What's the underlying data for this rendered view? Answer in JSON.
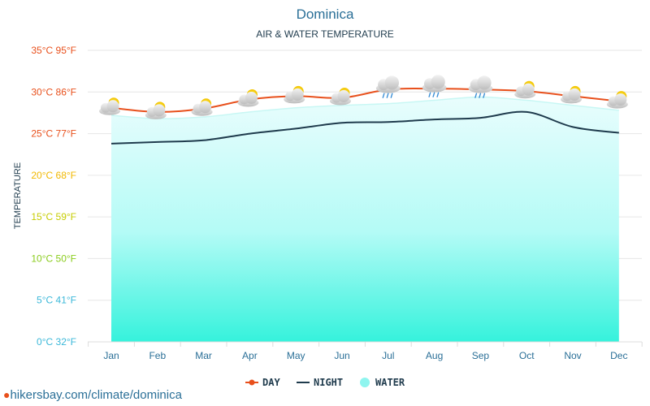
{
  "chart_data": {
    "type": "line",
    "title": "Dominica",
    "subtitle": "AIR & WATER TEMPERATURE",
    "ylabel": "TEMPERATURE",
    "xlabel": "",
    "categories": [
      "Jan",
      "Feb",
      "Mar",
      "Apr",
      "May",
      "Jun",
      "Jul",
      "Aug",
      "Sep",
      "Oct",
      "Nov",
      "Dec"
    ],
    "ylim": [
      0,
      35
    ],
    "yticks": [
      {
        "value": 35,
        "label": "35°C 95°F",
        "color": "#e8501c"
      },
      {
        "value": 30,
        "label": "30°C 86°F",
        "color": "#e8501c"
      },
      {
        "value": 25,
        "label": "25°C 77°F",
        "color": "#e8501c"
      },
      {
        "value": 20,
        "label": "20°C 68°F",
        "color": "#f1b800"
      },
      {
        "value": 15,
        "label": "15°C 59°F",
        "color": "#c6cc00"
      },
      {
        "value": 10,
        "label": "10°C 50°F",
        "color": "#8acc1c"
      },
      {
        "value": 5,
        "label": "5°C 41°F",
        "color": "#3bb8d9"
      },
      {
        "value": 0,
        "label": "0°C 32°F",
        "color": "#3bb8d9"
      }
    ],
    "grid": true,
    "legend_position": "bottom",
    "series": [
      {
        "name": "DAY",
        "kind": "line",
        "color": "#e8501c",
        "values": [
          28.1,
          27.6,
          28.0,
          29.1,
          29.5,
          29.3,
          30.3,
          30.4,
          30.3,
          30.1,
          29.5,
          28.9
        ]
      },
      {
        "name": "NIGHT",
        "kind": "line",
        "color": "#1f3b4d",
        "values": [
          23.8,
          24.0,
          24.2,
          25.0,
          25.6,
          26.3,
          26.4,
          26.7,
          26.9,
          27.6,
          25.8,
          25.1
        ]
      },
      {
        "name": "WATER",
        "kind": "area",
        "color": "#5ff3e8",
        "values": [
          27.2,
          26.8,
          27.0,
          27.6,
          28.1,
          28.4,
          28.6,
          29.0,
          29.4,
          29.0,
          28.4,
          27.8
        ]
      }
    ],
    "weather_icons": [
      "partly-cloudy",
      "partly-cloudy",
      "partly-cloudy",
      "partly-cloudy",
      "partly-cloudy",
      "partly-cloudy",
      "cloud-rain",
      "cloud-rain",
      "cloud-rain",
      "partly-cloudy",
      "partly-cloudy",
      "partly-cloudy"
    ]
  },
  "source": {
    "text": "hikersbay.com/climate/dominica",
    "icon": "location-pin-icon"
  }
}
